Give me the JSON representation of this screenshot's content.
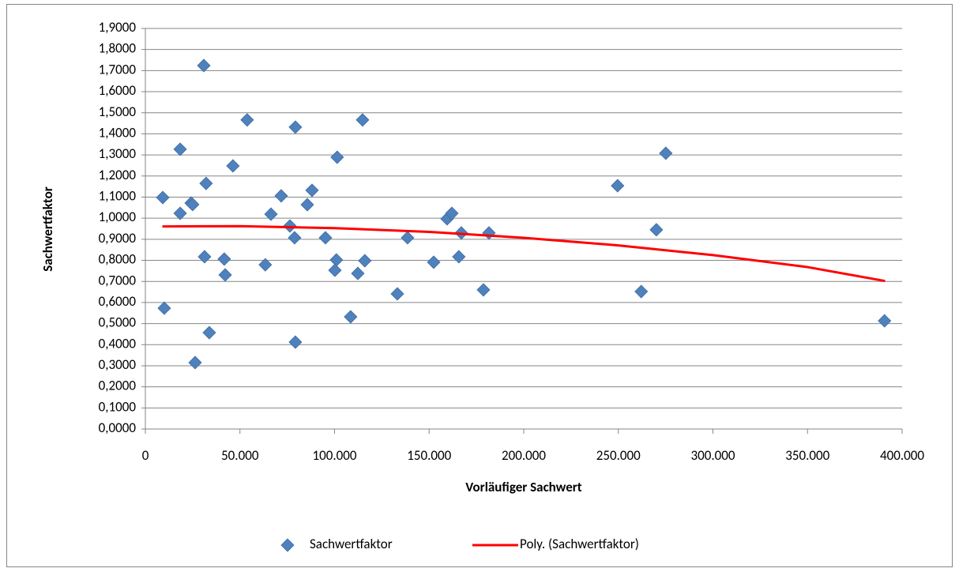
{
  "chart_data": {
    "type": "scatter",
    "x_label": "Vorläufiger Sachwert",
    "y_label": "Sachwertfaktor",
    "xlim": [
      0,
      400000
    ],
    "xticks": [
      0,
      {
        "value": 50000,
        "label": "50.000"
      },
      {
        "value": 100000,
        "label": "100.000"
      },
      {
        "value": 150000,
        "label": "150.000"
      },
      {
        "value": 200000,
        "label": "200.000"
      },
      {
        "value": 250000,
        "label": "250.000"
      },
      {
        "value": 300000,
        "label": "300.000"
      },
      {
        "value": 350000,
        "label": "350.000"
      },
      {
        "value": 400000,
        "label": "400.000"
      }
    ],
    "ylim": [
      0,
      1.9
    ],
    "yticks": [
      {
        "value": 0,
        "label": "0,0000"
      },
      {
        "value": 0.1,
        "label": "0,1000"
      },
      {
        "value": 0.2,
        "label": "0,2000"
      },
      {
        "value": 0.3,
        "label": "0,3000"
      },
      {
        "value": 0.4,
        "label": "0,4000"
      },
      {
        "value": 0.5,
        "label": "0,5000"
      },
      {
        "value": 0.6,
        "label": "0,6000"
      },
      {
        "value": 0.7,
        "label": "0,7000"
      },
      {
        "value": 0.8,
        "label": "0,8000"
      },
      {
        "value": 0.9,
        "label": "0,9000"
      },
      {
        "value": 1.0,
        "label": "1,0000"
      },
      {
        "value": 1.1,
        "label": "1,1000"
      },
      {
        "value": 1.2,
        "label": "1,2000"
      },
      {
        "value": 1.3,
        "label": "1,3000"
      },
      {
        "value": 1.4,
        "label": "1,4000"
      },
      {
        "value": 1.5,
        "label": "1,5000"
      },
      {
        "value": 1.6,
        "label": "1,6000"
      },
      {
        "value": 1.7,
        "label": "1,7000"
      },
      {
        "value": 1.8,
        "label": "1,8000"
      },
      {
        "value": 1.9,
        "label": "1,9000"
      }
    ],
    "grid": true,
    "legend": "bottom",
    "series": [
      {
        "name": "Sachwertfaktor",
        "color": "#4f81bd",
        "marker": "diamond",
        "x": [
          9200,
          10000,
          18400,
          18400,
          24200,
          25000,
          26300,
          30900,
          31300,
          33800,
          32100,
          46300,
          41700,
          42200,
          53800,
          63400,
          66400,
          71800,
          76400,
          78900,
          79300,
          79300,
          85600,
          88100,
          95200,
          101400,
          101000,
          100200,
          108500,
          112300,
          114800,
          116000,
          133200,
          138600,
          152400,
          159500,
          162000,
          165700,
          167000,
          178700,
          181600,
          249600,
          262100,
          270100,
          275100,
          390700
        ],
        "values": [
          1.098,
          0.573,
          1.327,
          1.023,
          1.072,
          1.065,
          0.315,
          1.724,
          0.817,
          0.457,
          1.165,
          1.248,
          0.806,
          0.731,
          1.466,
          0.779,
          1.019,
          1.106,
          0.963,
          0.907,
          1.432,
          0.412,
          1.064,
          1.132,
          0.907,
          1.289,
          0.802,
          0.753,
          0.532,
          0.738,
          1.466,
          0.798,
          0.641,
          0.907,
          0.791,
          0.997,
          1.023,
          0.817,
          0.93,
          0.66,
          0.93,
          1.154,
          0.652,
          0.945,
          1.308,
          0.513
        ]
      },
      {
        "name": "Poly. (Sachwertfaktor)",
        "color": "#ff0000",
        "marker": "line",
        "x": [
          9000,
          50000,
          100000,
          150000,
          200000,
          250000,
          300000,
          350000,
          391000
        ],
        "values": [
          0.961,
          0.962,
          0.953,
          0.935,
          0.907,
          0.871,
          0.825,
          0.768,
          0.702
        ]
      }
    ]
  }
}
